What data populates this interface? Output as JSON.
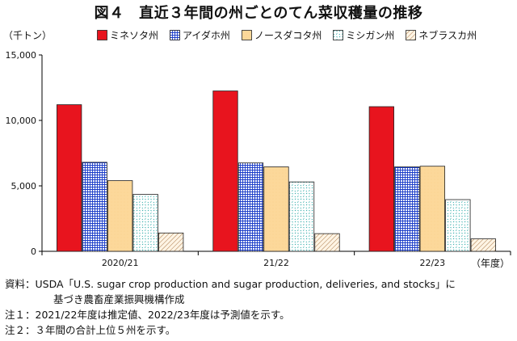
{
  "title": "図４　直近３年間の州ごとのてん菜収穫量の推移",
  "unit_label": "（千トン）",
  "year_unit_label": "（年度）",
  "colors": {
    "minnesota": "#e8141e",
    "idaho": "#ffffff",
    "north_dakota": "#fcd89a",
    "michigan": "#ffffff",
    "nebraska": "#ffffff",
    "axis": "#000000"
  },
  "chart_data": {
    "type": "bar",
    "categories": [
      "2020/21",
      "21/22",
      "22/23"
    ],
    "series": [
      {
        "name": "ミネソタ州",
        "values": [
          11200,
          12250,
          11050
        ]
      },
      {
        "name": "アイダホ州",
        "values": [
          6800,
          6750,
          6450
        ]
      },
      {
        "name": "ノースダコタ州",
        "values": [
          5400,
          6450,
          6500
        ]
      },
      {
        "name": "ミシガン州",
        "values": [
          4350,
          5300,
          3950
        ]
      },
      {
        "name": "ネブラスカ州",
        "values": [
          1400,
          1350,
          950
        ]
      }
    ],
    "ylim": [
      0,
      15000
    ],
    "yticks": [
      0,
      5000,
      10000,
      15000
    ],
    "ytick_labels": [
      "0",
      "5,000",
      "10,000",
      "15,000"
    ],
    "grid": false,
    "legend_position": "top"
  },
  "notes": [
    {
      "key": "資料：",
      "text": "USDA「U.S. sugar crop production and sugar production, deliveries, and stocks」に"
    },
    {
      "key": "",
      "text": "基づき農畜産業振興機構作成"
    },
    {
      "key": "注１：",
      "text": "2021/22年度は推定値、2022/23年度は予測値を示す。"
    },
    {
      "key": "注２：",
      "text": "３年間の合計上位５州を示す。"
    }
  ]
}
